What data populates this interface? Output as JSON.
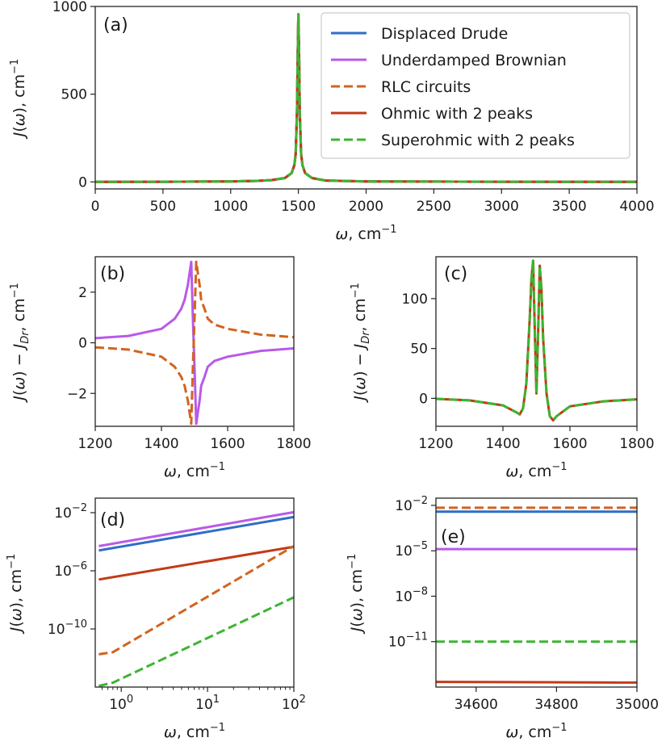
{
  "colors": {
    "displaced_drude": "#2f6ec8",
    "underdamped_brownian": "#b85ae8",
    "rlc_circuits": "#d2631e",
    "ohmic_2_peaks": "#c23a17",
    "superohmic_2_peaks": "#3cb531"
  },
  "chart_data": [
    {
      "panel": "(a)",
      "type": "line",
      "xlabel": "ω, cm⁻¹",
      "ylabel": "J(ω), cm⁻¹",
      "xlim": [
        0,
        4000
      ],
      "ylim": [
        -40,
        1000
      ],
      "xticks": [
        0,
        500,
        1000,
        1500,
        2000,
        2500,
        3000,
        3500,
        4000
      ],
      "xtick_labels": [
        "0",
        "500",
        "1000",
        "1500",
        "2000",
        "2500",
        "3000",
        "3500",
        "4000"
      ],
      "yticks": [
        0,
        500,
        1000
      ],
      "ytick_labels": [
        "0",
        "500",
        "1000"
      ],
      "grid": false,
      "legend": {
        "placement": "top-right",
        "entries": [
          {
            "label": "Displaced Drude",
            "style": "solid",
            "color": "#2f6ec8"
          },
          {
            "label": "Underdamped Brownian",
            "style": "solid",
            "color": "#b85ae8"
          },
          {
            "label": "RLC circuits",
            "style": "dashed",
            "color": "#d2631e"
          },
          {
            "label": "Ohmic with 2 peaks",
            "style": "solid",
            "color": "#c23a17"
          },
          {
            "label": "Superohmic with 2 peaks",
            "style": "dashed",
            "color": "#3cb531"
          }
        ]
      },
      "series": [
        {
          "name": "Displaced Drude",
          "style": "solid",
          "color": "#2f6ec8",
          "x": [
            0,
            500,
            1000,
            1200,
            1300,
            1400,
            1450,
            1470,
            1480,
            1490,
            1495,
            1500,
            1505,
            1510,
            1520,
            1530,
            1550,
            1600,
            1700,
            2000,
            3000,
            4000
          ],
          "y": [
            0,
            1,
            3,
            6,
            10,
            22,
            50,
            95,
            160,
            400,
            720,
            955,
            720,
            400,
            160,
            95,
            50,
            22,
            8,
            3,
            1,
            0
          ]
        },
        {
          "name": "Underdamped Brownian",
          "style": "solid",
          "color": "#b85ae8",
          "x": [
            0,
            500,
            1000,
            1200,
            1300,
            1400,
            1450,
            1470,
            1480,
            1490,
            1495,
            1500,
            1505,
            1510,
            1520,
            1530,
            1550,
            1600,
            1700,
            2000,
            3000,
            4000
          ],
          "y": [
            0,
            1,
            3,
            6,
            10,
            22,
            50,
            95,
            160,
            400,
            720,
            955,
            720,
            400,
            160,
            95,
            50,
            22,
            8,
            3,
            1,
            0
          ]
        },
        {
          "name": "Ohmic with 2 peaks",
          "style": "solid",
          "color": "#c23a17",
          "x": [
            0,
            500,
            1000,
            1200,
            1300,
            1400,
            1450,
            1470,
            1480,
            1490,
            1495,
            1500,
            1505,
            1510,
            1520,
            1530,
            1550,
            1600,
            1700,
            2000,
            3000,
            4000
          ],
          "y": [
            0,
            1,
            3,
            6,
            10,
            22,
            50,
            95,
            160,
            400,
            720,
            955,
            720,
            400,
            160,
            95,
            50,
            22,
            8,
            3,
            1,
            0
          ]
        },
        {
          "name": "RLC circuits",
          "style": "dashed",
          "color": "#d2631e",
          "x": [
            0,
            500,
            1000,
            1200,
            1300,
            1400,
            1450,
            1470,
            1480,
            1490,
            1495,
            1500,
            1505,
            1510,
            1520,
            1530,
            1550,
            1600,
            1700,
            2000,
            3000,
            4000
          ],
          "y": [
            0,
            1,
            3,
            6,
            10,
            22,
            50,
            95,
            160,
            400,
            720,
            955,
            720,
            400,
            160,
            95,
            50,
            22,
            8,
            3,
            1,
            0
          ]
        },
        {
          "name": "Superohmic with 2 peaks",
          "style": "dashed",
          "color": "#3cb531",
          "x": [
            0,
            500,
            1000,
            1200,
            1300,
            1400,
            1450,
            1470,
            1480,
            1490,
            1495,
            1500,
            1505,
            1510,
            1520,
            1530,
            1550,
            1600,
            1700,
            2000,
            3000,
            4000
          ],
          "y": [
            0,
            1,
            3,
            6,
            10,
            22,
            50,
            95,
            160,
            400,
            720,
            955,
            720,
            400,
            160,
            95,
            50,
            22,
            8,
            3,
            1,
            0
          ]
        }
      ]
    },
    {
      "panel": "(b)",
      "type": "line",
      "xlabel": "ω, cm⁻¹",
      "ylabel": "J(ω) − J_Dr, cm⁻¹",
      "xlim": [
        1200,
        1800
      ],
      "ylim": [
        -3.3,
        3.4
      ],
      "xticks": [
        1200,
        1400,
        1600,
        1800
      ],
      "xtick_labels": [
        "1200",
        "1400",
        "1600",
        "1800"
      ],
      "yticks": [
        -2,
        0,
        2
      ],
      "ytick_labels": [
        "−2",
        "0",
        "2"
      ],
      "grid": false,
      "series": [
        {
          "name": "Underdamped Brownian",
          "style": "solid",
          "color": "#b85ae8",
          "x": [
            1200,
            1300,
            1400,
            1440,
            1460,
            1470,
            1480,
            1485,
            1490,
            1495,
            1500,
            1505,
            1510,
            1515,
            1520,
            1530,
            1540,
            1560,
            1600,
            1700,
            1800
          ],
          "y": [
            0.18,
            0.27,
            0.55,
            0.95,
            1.35,
            1.7,
            2.3,
            2.75,
            3.2,
            1.0,
            -1.0,
            -3.2,
            -2.75,
            -2.3,
            -1.7,
            -1.35,
            -0.95,
            -0.72,
            -0.55,
            -0.32,
            -0.22
          ]
        },
        {
          "name": "RLC circuits",
          "style": "dashed",
          "color": "#d2631e",
          "x": [
            1200,
            1300,
            1400,
            1440,
            1460,
            1470,
            1480,
            1485,
            1490,
            1495,
            1500,
            1505,
            1510,
            1515,
            1520,
            1530,
            1540,
            1560,
            1600,
            1700,
            1800
          ],
          "y": [
            -0.18,
            -0.27,
            -0.55,
            -0.95,
            -1.35,
            -1.7,
            -2.3,
            -2.75,
            -3.2,
            -1.0,
            1.0,
            3.2,
            2.75,
            2.3,
            1.7,
            1.35,
            0.95,
            0.72,
            0.55,
            0.32,
            0.22
          ]
        }
      ]
    },
    {
      "panel": "(c)",
      "type": "line",
      "xlabel": "ω, cm⁻¹",
      "ylabel": "J(ω) − J_Dr, cm⁻¹",
      "xlim": [
        1200,
        1800
      ],
      "ylim": [
        -28,
        142
      ],
      "xticks": [
        1200,
        1400,
        1600,
        1800
      ],
      "xtick_labels": [
        "1200",
        "1400",
        "1600",
        "1800"
      ],
      "yticks": [
        0,
        50,
        100
      ],
      "ytick_labels": [
        "0",
        "50",
        "100"
      ],
      "grid": false,
      "series": [
        {
          "name": "Ohmic with 2 peaks",
          "style": "solid",
          "color": "#c23a17",
          "x": [
            1200,
            1300,
            1400,
            1440,
            1450,
            1460,
            1470,
            1480,
            1485,
            1490,
            1495,
            1500,
            1505,
            1510,
            1515,
            1520,
            1530,
            1540,
            1550,
            1560,
            1600,
            1700,
            1800
          ],
          "y": [
            -0.5,
            -2,
            -7,
            -14,
            -16,
            -10,
            15,
            80,
            120,
            138,
            70,
            5,
            65,
            133,
            110,
            60,
            5,
            -18,
            -22,
            -18,
            -8,
            -3,
            -1
          ]
        },
        {
          "name": "Superohmic with 2 peaks",
          "style": "dashed",
          "color": "#3cb531",
          "x": [
            1200,
            1300,
            1400,
            1440,
            1450,
            1460,
            1470,
            1480,
            1485,
            1490,
            1495,
            1500,
            1505,
            1510,
            1515,
            1520,
            1530,
            1540,
            1550,
            1560,
            1600,
            1700,
            1800
          ],
          "y": [
            -0.5,
            -2,
            -7,
            -14,
            -16,
            -10,
            15,
            80,
            120,
            138,
            70,
            5,
            65,
            133,
            110,
            60,
            5,
            -18,
            -22,
            -18,
            -8,
            -3,
            -1
          ]
        }
      ]
    },
    {
      "panel": "(d)",
      "type": "line",
      "xscale": "log",
      "yscale": "log",
      "xlabel": "ω, cm⁻¹",
      "ylabel": "J(ω), cm⁻¹",
      "xlim": [
        0.5,
        100
      ],
      "ylim": [
        1e-14,
        0.1
      ],
      "xticks": [
        1,
        10,
        100
      ],
      "xtick_labels": [
        "10^0",
        "10^1",
        "10^2"
      ],
      "yticks": [
        1e-10,
        1e-06,
        0.01
      ],
      "ytick_labels": [
        "10^-10",
        "10^-6",
        "10^-2"
      ],
      "grid": false,
      "series": [
        {
          "name": "Displaced Drude",
          "style": "solid",
          "color": "#2f6ec8",
          "x": [
            0.55,
            100
          ],
          "y": [
            2.5e-05,
            0.005
          ]
        },
        {
          "name": "Underdamped Brownian",
          "style": "solid",
          "color": "#b85ae8",
          "x": [
            0.55,
            100
          ],
          "y": [
            5e-05,
            0.011
          ]
        },
        {
          "name": "Ohmic with 2 peaks",
          "style": "solid",
          "color": "#c23a17",
          "x": [
            0.55,
            100
          ],
          "y": [
            2.5e-07,
            4.5e-05
          ]
        },
        {
          "name": "RLC circuits",
          "style": "dashed",
          "color": "#d2631e",
          "x": [
            0.55,
            0.8,
            100
          ],
          "y": [
            1.8e-12,
            2.5e-12,
            5e-05
          ]
        },
        {
          "name": "Superohmic with 2 peaks",
          "style": "dashed",
          "color": "#3cb531",
          "x": [
            0.55,
            0.8,
            100
          ],
          "y": [
            1.2e-14,
            2e-14,
            1.5e-08
          ]
        }
      ]
    },
    {
      "panel": "(e)",
      "type": "line",
      "yscale": "log",
      "xlabel": "ω, cm⁻¹",
      "ylabel": "J(ω), cm⁻¹",
      "xlim": [
        34500,
        35000
      ],
      "ylim": [
        1e-14,
        0.03
      ],
      "xticks": [
        34600,
        34800,
        35000
      ],
      "xtick_labels": [
        "34600",
        "34800",
        "35000"
      ],
      "yticks": [
        1e-11,
        1e-08,
        1e-05,
        0.01
      ],
      "ytick_labels": [
        "10^-11",
        "10^-8",
        "10^-5",
        "10^-2"
      ],
      "grid": false,
      "series": [
        {
          "name": "RLC circuits",
          "style": "dashed",
          "color": "#d2631e",
          "x": [
            34500,
            35000
          ],
          "y": [
            0.007,
            0.007
          ]
        },
        {
          "name": "Displaced Drude",
          "style": "solid",
          "color": "#2f6ec8",
          "x": [
            34500,
            35000
          ],
          "y": [
            0.0038,
            0.0038
          ]
        },
        {
          "name": "Underdamped Brownian",
          "style": "solid",
          "color": "#b85ae8",
          "x": [
            34500,
            35000
          ],
          "y": [
            1.3e-05,
            1.3e-05
          ]
        },
        {
          "name": "Superohmic with 2 peaks",
          "style": "dashed",
          "color": "#3cb531",
          "x": [
            34500,
            35000
          ],
          "y": [
            1e-11,
            1e-11
          ]
        },
        {
          "name": "Ohmic with 2 peaks",
          "style": "solid",
          "color": "#c23a17",
          "x": [
            34500,
            35000
          ],
          "y": [
            2.2e-14,
            2e-14
          ]
        }
      ]
    }
  ]
}
